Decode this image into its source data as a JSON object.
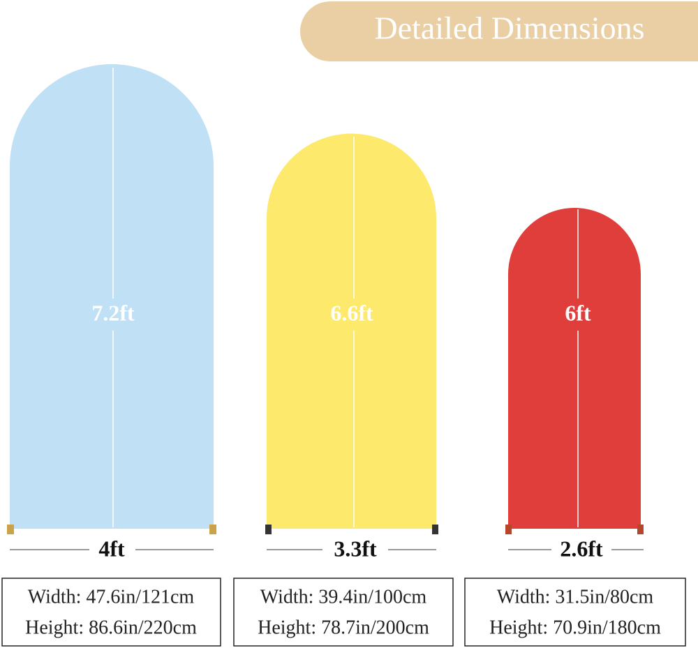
{
  "header": {
    "title": "Detailed Dimensions"
  },
  "arches": [
    {
      "height_label": "7.2ft",
      "width_label": "4ft",
      "width_spec": "Width: 47.6in/121cm",
      "height_spec": "Height: 86.6in/220cm"
    },
    {
      "height_label": "6.6ft",
      "width_label": "3.3ft",
      "width_spec": "Width: 39.4in/100cm",
      "height_spec": "Height: 78.7in/200cm"
    },
    {
      "height_label": "6ft",
      "width_label": "2.6ft",
      "width_spec": "Width: 31.5in/80cm",
      "height_spec": "Height: 70.9in/180cm"
    }
  ]
}
